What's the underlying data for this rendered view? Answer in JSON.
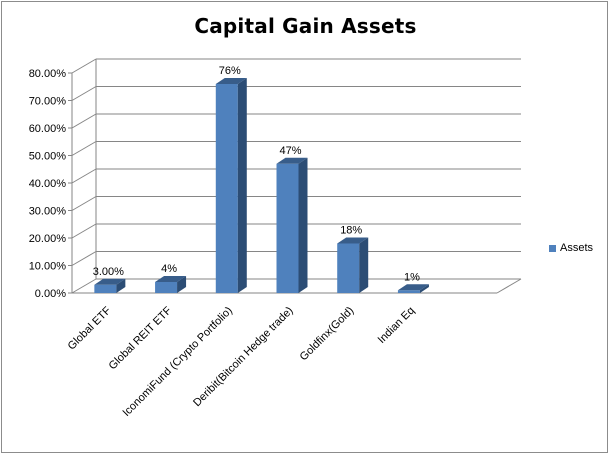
{
  "chart_data": {
    "type": "bar",
    "title": "Capital Gain Assets",
    "categories": [
      "Global ETF",
      "Global REIT ETF",
      "IconomiFund (Crypto Portfolio)",
      "Deribit(Bitcoin Hedge trade)",
      "Goldfinx(Gold)",
      "Indian Eq"
    ],
    "series": [
      {
        "name": "Assets",
        "values": [
          0.03,
          0.04,
          0.76,
          0.47,
          0.18,
          0.01
        ],
        "labels": [
          "3.00%",
          "4%",
          "76%",
          "47%",
          "18%",
          "1%"
        ]
      }
    ],
    "y_ticks": [
      "0.00%",
      "10.00%",
      "20.00%",
      "30.00%",
      "40.00%",
      "50.00%",
      "60.00%",
      "70.00%",
      "80.00%"
    ],
    "ylim": [
      0,
      0.8
    ],
    "grid": true,
    "three_d": true,
    "legend_position": "right",
    "colors": {
      "bar_front": "#4f81bd",
      "bar_side": "#2c4d75",
      "bar_top": "#385d8a",
      "grid": "#868686"
    }
  }
}
